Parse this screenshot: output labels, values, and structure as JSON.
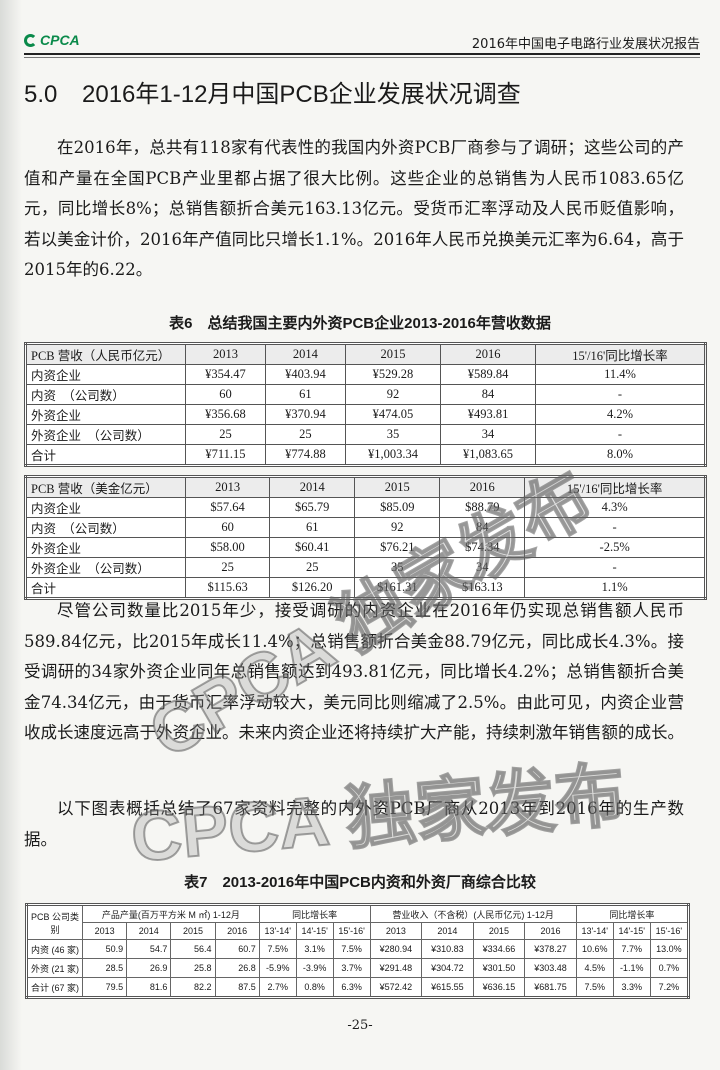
{
  "header": {
    "logo_text": "CPCA",
    "title": "2016年中国电子电路行业发展状况报告"
  },
  "section": {
    "number": "5.0",
    "title": "2016年1-12月中国PCB企业发展状况调查"
  },
  "paragraphs": [
    "在2016年，总共有118家有代表性的我国内外资PCB厂商参与了调研；这些公司的产值和产量在全国PCB产业里都占据了很大比例。这些企业的总销售为人民币1083.65亿元，同比增长8%；总销售额折合美元163.13亿元。受货币汇率浮动及人民币贬值影响，若以美金计价，2016年产值同比只增长1.1%。2016年人民币兑换美元汇率为6.64，高于2015年的6.22。",
    "尽管公司数量比2015年少，接受调研的内资企业在2016年仍实现总销售额人民币589.84亿元，比2015年成长11.4%；总销售额折合美金88.79亿元，同比成长4.3%。接受调研的34家外资企业同年总销售额达到493.81亿元，同比增长4.2%；总销售额折合美金74.34亿元，由于货币汇率浮动较大，美元同比则缩减了2.5%。由此可见，内资企业营收成长速度远高于外资企业。未来内资企业还将持续扩大产能，持续刺激年销售额的成长。",
    "以下图表概括总结了67家资料完整的内外资PCB厂商从2013年到2016年的生产数据。"
  ],
  "table6": {
    "caption": "表6　总结我国主要内外资PCB企业2013-2016年营收数据",
    "rmb": {
      "header": [
        "PCB 营收（人民币亿元）",
        "2013",
        "2014",
        "2015",
        "2016",
        "15'/16'同比增长率"
      ],
      "rows": [
        [
          "内资企业",
          "¥354.47",
          "¥403.94",
          "¥529.28",
          "¥589.84",
          "11.4%"
        ],
        [
          "内资　（公司数）",
          "60",
          "61",
          "92",
          "84",
          "-"
        ],
        [
          "外资企业",
          "¥356.68",
          "¥370.94",
          "¥474.05",
          "¥493.81",
          "4.2%"
        ],
        [
          "外资企业　（公司数）",
          "25",
          "25",
          "35",
          "34",
          "-"
        ],
        [
          "合计",
          "¥711.15",
          "¥774.88",
          "¥1,003.34",
          "¥1,083.65",
          "8.0%"
        ]
      ]
    },
    "usd": {
      "header": [
        "PCB 营收（美金亿元）",
        "2013",
        "2014",
        "2015",
        "2016",
        "15'/16'同比增长率"
      ],
      "rows": [
        [
          "内资企业",
          "$57.64",
          "$65.79",
          "$85.09",
          "$88.79",
          "4.3%"
        ],
        [
          "内资　（公司数）",
          "60",
          "61",
          "92",
          "84",
          "-"
        ],
        [
          "外资企业",
          "$58.00",
          "$60.41",
          "$76.21",
          "$74.34",
          "-2.5%"
        ],
        [
          "外资企业　（公司数）",
          "25",
          "25",
          "35",
          "34",
          "-"
        ],
        [
          "合计",
          "$115.63",
          "$126.20",
          "$161.31",
          "$163.13",
          "1.1%"
        ]
      ]
    }
  },
  "table7": {
    "caption": "表7　2013-2016年中国PCB内资和外资厂商综合比较",
    "corner": "PCB 公司类别",
    "group_headers": [
      "产品产量(百万平方米 M ㎡) 1-12月",
      "同比增长率",
      "营业收入（不含税）(人民币亿元) 1-12月",
      "同比增长率"
    ],
    "sub_headers": [
      "2013",
      "2014",
      "2015",
      "2016",
      "13'-14'",
      "14'-15'",
      "15'-16'",
      "2013",
      "2014",
      "2015",
      "2016",
      "13'-14'",
      "14'-15'",
      "15'-16'"
    ],
    "rows": [
      [
        "内资 (46 家)",
        "50.9",
        "54.7",
        "56.4",
        "60.7",
        "7.5%",
        "3.1%",
        "7.5%",
        "¥280.94",
        "¥310.83",
        "¥334.66",
        "¥378.27",
        "10.6%",
        "7.7%",
        "13.0%"
      ],
      [
        "外资 (21 家)",
        "28.5",
        "26.9",
        "25.8",
        "26.8",
        "-5.9%",
        "-3.9%",
        "3.7%",
        "¥291.48",
        "¥304.72",
        "¥301.50",
        "¥303.48",
        "4.5%",
        "-1.1%",
        "0.7%"
      ],
      [
        "合计 (67 家)",
        "79.5",
        "81.6",
        "82.2",
        "87.5",
        "2.7%",
        "0.8%",
        "6.3%",
        "¥572.42",
        "¥615.55",
        "¥636.15",
        "¥681.75",
        "7.5%",
        "3.3%",
        "7.2%"
      ]
    ]
  },
  "watermark": "CPCA 独家发布",
  "page_number": "-25-",
  "colors": {
    "brand": "#0a8a4a"
  }
}
